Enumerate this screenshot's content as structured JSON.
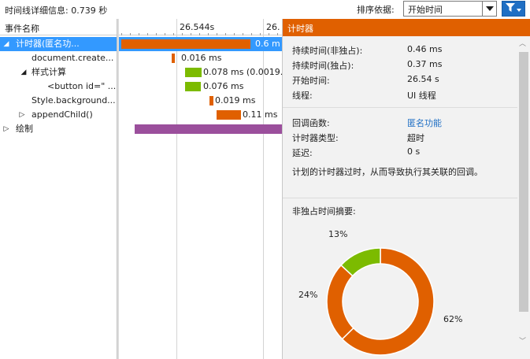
{
  "toolbar": {
    "title": "时间线详细信息: 0.739 秒",
    "sort_label": "排序依据:",
    "sort_value": "开始时间",
    "filter_icon": "funnel-icon"
  },
  "timeline": {
    "column_header": "事件名称",
    "ticks": [
      "26.544s",
      "26."
    ],
    "rows": [
      {
        "name": "计时器(匿名功...",
        "expander": "expanded",
        "duration": "0.6 m",
        "color": "#e06000",
        "selected": true
      },
      {
        "name": "document.create...",
        "expander": "none",
        "duration": "0.016 ms",
        "color": "#e06000"
      },
      {
        "name": "样式计算",
        "expander": "expanded",
        "duration": "0.078 ms (0.0019...",
        "color": "#7cbb00"
      },
      {
        "name": "<button id=\" ...",
        "expander": "none",
        "duration": "0.076 ms",
        "color": "#7cbb00"
      },
      {
        "name": "Style.background...",
        "expander": "none",
        "duration": "0.019 ms",
        "color": "#e06000"
      },
      {
        "name": "appendChild()",
        "expander": "collapsed",
        "duration": "0.11 ms",
        "color": "#e06000"
      },
      {
        "name": "绘制",
        "expander": "collapsed",
        "duration": "",
        "color": "#9b4f9c"
      }
    ]
  },
  "details": {
    "header": "计时器",
    "props_a": [
      {
        "label": "持续时间(非独占):",
        "value": "0.46 ms"
      },
      {
        "label": "持续时间(独占):",
        "value": "0.37 ms"
      },
      {
        "label": "开始时间:",
        "value": "26.54 s"
      },
      {
        "label": "线程:",
        "value": "UI 线程"
      }
    ],
    "props_b": [
      {
        "label": "回调函数:",
        "value": "匿名功能",
        "link": true
      },
      {
        "label": "计时器类型:",
        "value": "超时"
      },
      {
        "label": "延迟:",
        "value": "0 s"
      }
    ],
    "description": "计划的计时器过时，从而导致执行其关联的回调。",
    "summary_title": "非独占时间摘要:",
    "summary": [
      {
        "label": "62%",
        "value": 62,
        "color": "#e06000"
      },
      {
        "label": "24%",
        "value": 24,
        "color": "#e06000"
      },
      {
        "label": "13%",
        "value": 13,
        "color": "#7cbb00"
      }
    ]
  }
}
